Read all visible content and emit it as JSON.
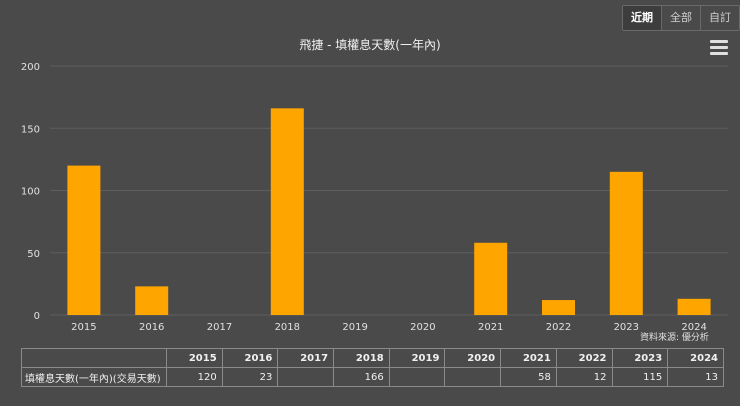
{
  "range_buttons": [
    {
      "label": "近期",
      "active": true
    },
    {
      "label": "全部",
      "active": false
    },
    {
      "label": "自訂",
      "active": false
    }
  ],
  "credit": "資料來源: 優分析",
  "table": {
    "row_label": "填權息天數(一年內)(交易天數)",
    "headers": [
      "2015",
      "2016",
      "2017",
      "2018",
      "2019",
      "2020",
      "2021",
      "2022",
      "2023",
      "2024"
    ],
    "values": [
      "120",
      "23",
      "",
      "166",
      "",
      "",
      "58",
      "12",
      "115",
      "13"
    ]
  },
  "chart_data": {
    "type": "bar",
    "title": "飛捷 - 填權息天數(一年內)",
    "categories": [
      "2015",
      "2016",
      "2017",
      "2018",
      "2019",
      "2020",
      "2021",
      "2022",
      "2023",
      "2024"
    ],
    "series": [
      {
        "values": [
          120,
          23,
          null,
          166,
          null,
          null,
          58,
          12,
          115,
          13
        ]
      }
    ],
    "ylim": [
      0,
      200
    ],
    "yticks": [
      "0",
      "50",
      "100",
      "150",
      "200"
    ],
    "bar_color": "#ffa500",
    "background": "#4a4a4a",
    "gridline_color": "#5e5e5e",
    "grid": true,
    "legend": "none"
  }
}
